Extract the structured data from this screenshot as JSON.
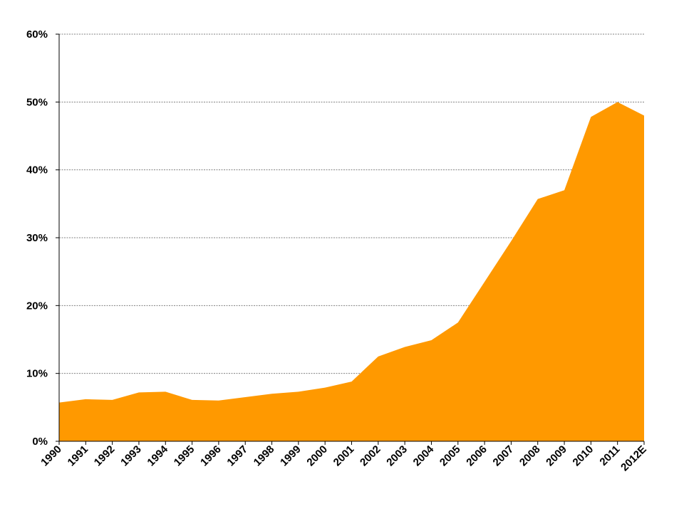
{
  "chart_data": {
    "type": "area",
    "title": "",
    "xlabel": "",
    "ylabel": "",
    "categories": [
      "1990",
      "1991",
      "1992",
      "1993",
      "1994",
      "1995",
      "1996",
      "1997",
      "1998",
      "1999",
      "2000",
      "2001",
      "2002",
      "2003",
      "2004",
      "2005",
      "2006",
      "2007",
      "2008",
      "2009",
      "2010",
      "2011",
      "2012E"
    ],
    "series": [
      {
        "values": [
          5.7,
          6.2,
          6.1,
          7.2,
          7.3,
          6.1,
          6.0,
          6.5,
          7.0,
          7.3,
          7.9,
          8.8,
          12.5,
          13.9,
          14.9,
          17.5,
          23.5,
          29.5,
          35.7,
          37.0,
          47.8,
          50.0,
          48.0
        ]
      }
    ],
    "ylim": [
      0,
      60
    ],
    "yticks": [
      0,
      10,
      20,
      30,
      40,
      50,
      60
    ],
    "ytick_labels": [
      "0%",
      "10%",
      "20%",
      "30%",
      "40%",
      "50%",
      "60%"
    ],
    "grid": true,
    "legend": "none",
    "colors": {
      "area": "#FF9900",
      "grid": "#808080",
      "axis": "#000000",
      "text": "#000000"
    }
  }
}
